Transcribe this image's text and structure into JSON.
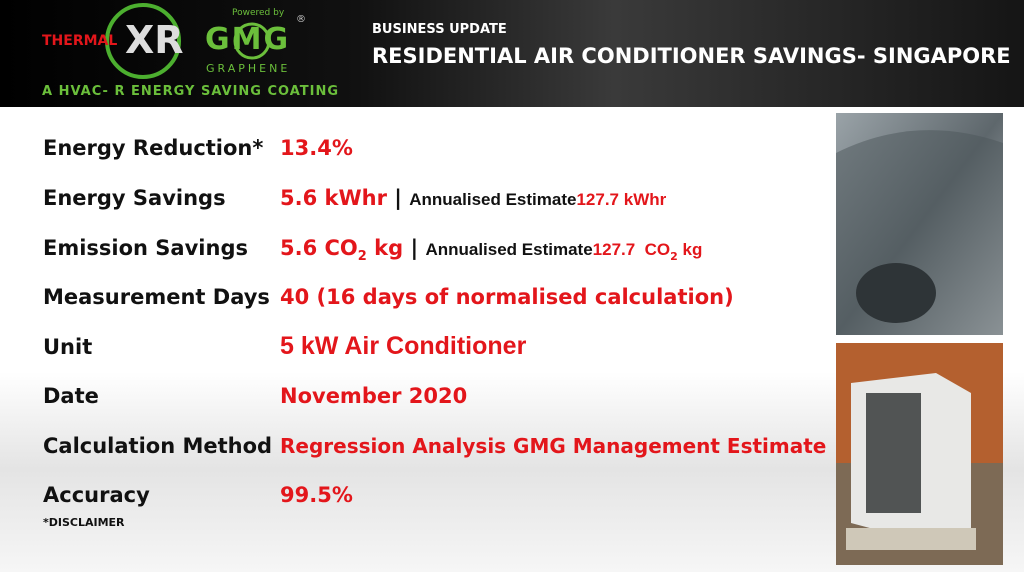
{
  "header": {
    "brand_left": "THERMAL",
    "brand_mark": "XR",
    "powered_by": "Powered by",
    "brand_right": "GMG",
    "registered": "®",
    "brand_sub": "GRAPHENE",
    "tagline": "A HVAC- R ENERGY SAVING COATING",
    "kicker": "BUSINESS UPDATE",
    "title": "RESIDENTIAL AIR CONDITIONER SAVINGS- SINGAPORE"
  },
  "rows": [
    {
      "label": "Energy Reduction*",
      "value": [
        "13.4%"
      ]
    },
    {
      "label": "Energy Savings",
      "value": [
        "5.6 kWhr",
        "|",
        "Annualised Estimate",
        "127.7 kWhr"
      ]
    },
    {
      "label": "Emission Savings",
      "value": [
        "5.6 CO",
        "2",
        " kg",
        "|",
        "Annualised Estimate",
        "127.7  CO",
        "2",
        " kg"
      ]
    },
    {
      "label": "Measurement Days",
      "value": [
        "40 (16 days of normalised calculation)"
      ]
    },
    {
      "label": "Unit",
      "value": [
        "5 kW Air Conditioner"
      ]
    },
    {
      "label": "Date",
      "value": [
        "November 2020"
      ]
    },
    {
      "label": "Calculation Method",
      "value": [
        "Regression Analysis GMG Management Estimate"
      ]
    },
    {
      "label": "Accuracy",
      "value": [
        "99.5%"
      ]
    }
  ],
  "footnote": "*DISCLAIMER"
}
